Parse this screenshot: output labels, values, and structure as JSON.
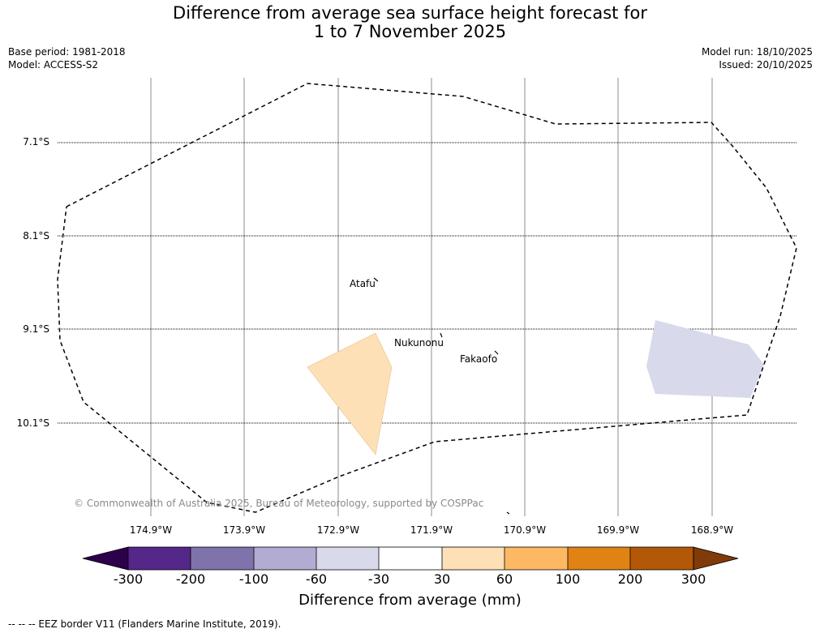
{
  "header": {
    "title_line1": "Difference from average sea surface height forecast for",
    "title_line2": "1 to 7 November 2025",
    "base_period": "Base period: 1981-2018",
    "model": "Model: ACCESS-S2",
    "model_run": "Model run: 18/10/2025",
    "issued": "Issued: 20/10/2025"
  },
  "map": {
    "lat_labels": [
      "7.1°S",
      "8.1°S",
      "9.1°S",
      "10.1°S"
    ],
    "lon_labels": [
      "174.9°W",
      "173.9°W",
      "172.9°W",
      "171.9°W",
      "170.9°W",
      "169.9°W",
      "168.9°W"
    ],
    "places": [
      "Atafu",
      "Nukunonu",
      "Fakaofo"
    ],
    "copyright": "© Commonwealth of Australia 2025, Bureau of Meteorology, supported by COSPPac",
    "anomaly_regions": [
      {
        "name": "positive-anomaly-region",
        "category": "30 to 60 mm",
        "color": "#fde0b6"
      },
      {
        "name": "negative-anomaly-region",
        "category": "-60 to -30 mm",
        "color": "#d8d9ea"
      }
    ]
  },
  "colorbar": {
    "label": "Difference from average (mm)",
    "ticks": [
      "-300",
      "-200",
      "-100",
      "-60",
      "-30",
      "30",
      "60",
      "100",
      "200",
      "300"
    ],
    "colors": [
      "#2d004b",
      "#542788",
      "#8073ac",
      "#b2abd2",
      "#d8daeb",
      "#ffffff",
      "#fee0b6",
      "#fdb863",
      "#e08214",
      "#b35806",
      "#7f3b08"
    ]
  },
  "footnote": "--  --  -- EEZ border V11 (Flanders Marine Institute, 2019)."
}
